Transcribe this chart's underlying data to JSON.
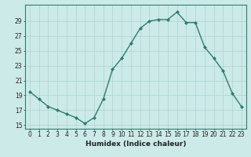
{
  "x": [
    0,
    1,
    2,
    3,
    4,
    5,
    6,
    7,
    8,
    9,
    10,
    11,
    12,
    13,
    14,
    15,
    16,
    17,
    18,
    19,
    20,
    21,
    22,
    23
  ],
  "y": [
    19.5,
    18.5,
    17.5,
    17.0,
    16.5,
    16.0,
    15.2,
    16.0,
    18.5,
    22.5,
    24.0,
    26.0,
    28.0,
    29.0,
    29.2,
    29.2,
    30.2,
    28.8,
    28.8,
    25.5,
    24.0,
    22.3,
    19.3,
    17.5
  ],
  "line_color": "#2e7d6e",
  "marker": "D",
  "marker_size": 2,
  "bg_color": "#cceae8",
  "grid_color": "#aad4d0",
  "xlabel": "Humidex (Indice chaleur)",
  "xlabel_fontsize": 6.5,
  "yticks": [
    15,
    17,
    19,
    21,
    23,
    25,
    27,
    29
  ],
  "xticks": [
    0,
    1,
    2,
    3,
    4,
    5,
    6,
    7,
    8,
    9,
    10,
    11,
    12,
    13,
    14,
    15,
    16,
    17,
    18,
    19,
    20,
    21,
    22,
    23
  ],
  "xlim": [
    -0.5,
    23.5
  ],
  "ylim": [
    14.5,
    31.2
  ],
  "tick_fontsize": 5.5,
  "line_width": 1.0,
  "spine_color": "#2e7d6e"
}
